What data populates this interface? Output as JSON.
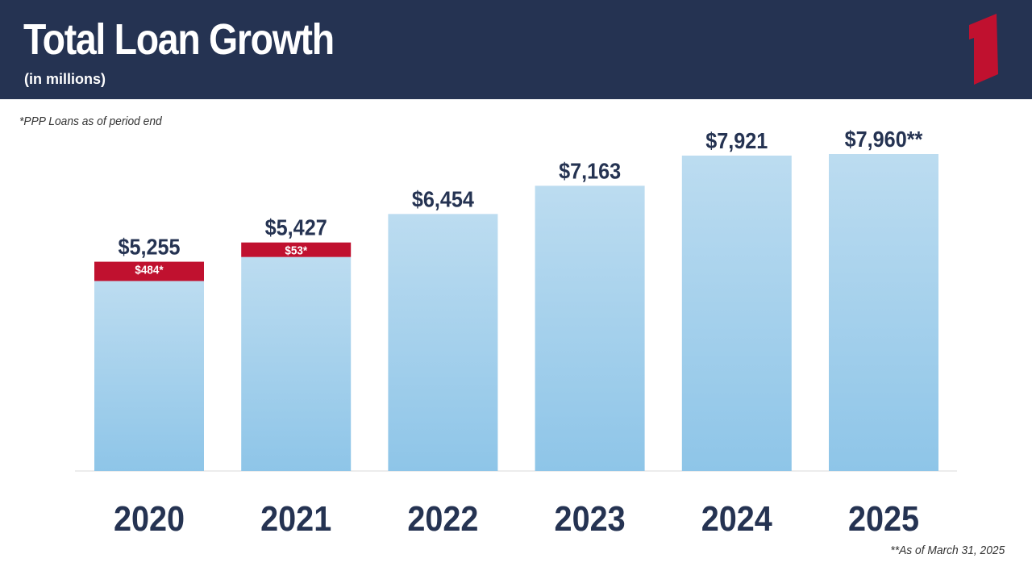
{
  "header": {
    "title": "Total Loan Growth",
    "subtitle": "(in millions)"
  },
  "notes": {
    "ppp": "*PPP Loans as of period end",
    "asof": "**As of March 31, 2025"
  },
  "colors": {
    "header_bg": "#253352",
    "bar_top": "#bcdcf0",
    "bar_bottom": "#8ec5e8",
    "ppp": "#c0112f",
    "label": "#253352",
    "logo": "#c0112f"
  },
  "chart_data": {
    "type": "bar",
    "stacked": true,
    "categories": [
      "2020",
      "2021",
      "2022",
      "2023",
      "2024",
      "2025"
    ],
    "series": [
      {
        "name": "",
        "values": [
          4771,
          5374,
          6454,
          7163,
          7921,
          7960
        ]
      },
      {
        "name": "PPP Loans",
        "values": [
          484,
          53,
          0,
          0,
          0,
          0
        ]
      }
    ],
    "totals": [
      5255,
      5427,
      6454,
      7163,
      7921,
      7960
    ],
    "total_labels": [
      "$5,255",
      "$5,427",
      "$6,454",
      "$7,163",
      "$7,921",
      "$7,960**"
    ],
    "ppp_labels": [
      "$484*",
      "$53*",
      "",
      "",
      "",
      ""
    ],
    "title": "Total Loan Growth",
    "ylim": [
      0,
      8000
    ],
    "grid": false,
    "legend": "none"
  }
}
